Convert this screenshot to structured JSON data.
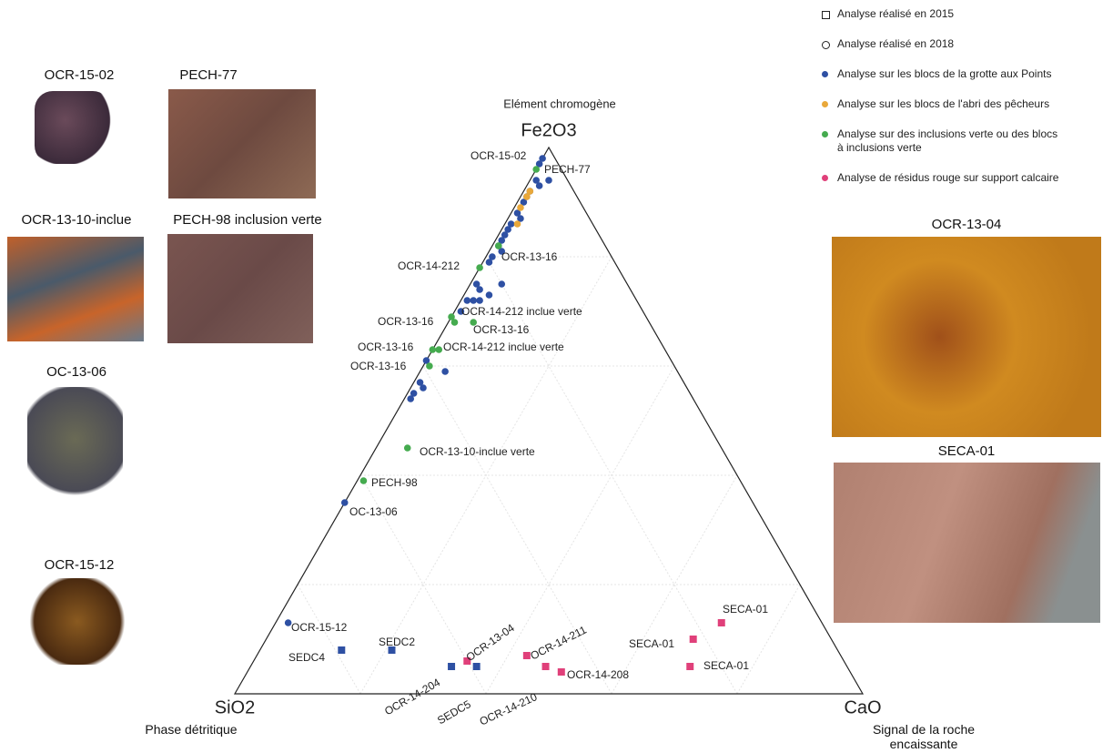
{
  "photos": [
    "OCR-15-02",
    "PECH-77",
    "OCR-13-10-inclue",
    "PECH-98 inclusion verte",
    "OC-13-06",
    "OCR-15-12",
    "OCR-13-04",
    "SECA-01"
  ],
  "chart_data": {
    "type": "ternary",
    "vertices": [
      {
        "name": "Fe2O3",
        "description": "Elément chromogène"
      },
      {
        "name": "SiO2",
        "description": "Phase détritique"
      },
      {
        "name": "CaO",
        "description": "Signal de la roche encaissante"
      }
    ],
    "lim": [
      0,
      100
    ],
    "ticks": [
      20,
      40,
      60,
      80
    ],
    "grid": true,
    "marker_legend": [
      {
        "marker": "square",
        "label": "Analyse réalisé en 2015"
      },
      {
        "marker": "circle",
        "label": "Analyse réalisé en 2018"
      }
    ],
    "series": [
      {
        "name": "Analyse sur les blocs de la grotte aux Points",
        "color": "#2e50a3",
        "fe": [
          98,
          97,
          94,
          94,
          93,
          92,
          91,
          90,
          88,
          87,
          86,
          85,
          84,
          83,
          82,
          81,
          80,
          79,
          75,
          75,
          74,
          72,
          72,
          72,
          73,
          70,
          59,
          61,
          57,
          56,
          55,
          54,
          35,
          13,
          8,
          8,
          5,
          5
        ],
        "si": [
          2,
          3,
          3,
          5,
          5,
          7,
          8,
          9,
          11,
          11,
          13,
          14,
          15,
          16,
          17,
          17,
          19,
          20,
          20,
          24,
          24,
          26,
          27,
          25,
          23,
          29,
          37,
          39,
          42,
          42,
          44,
          45,
          65,
          85,
          79,
          71,
          63,
          59
        ],
        "ca": [
          0,
          0,
          3,
          1,
          2,
          1,
          1,
          1,
          1,
          2,
          1,
          1,
          1,
          1,
          1,
          2,
          1,
          1,
          5,
          1,
          2,
          2,
          1,
          3,
          4,
          1,
          4,
          0,
          1,
          2,
          1,
          1,
          0,
          2,
          13,
          21,
          32,
          36
        ],
        "markers": [
          "circle",
          "circle",
          "circle",
          "circle",
          "circle",
          "circle",
          "circle",
          "circle",
          "circle",
          "circle",
          "circle",
          "circle",
          "circle",
          "circle",
          "circle",
          "circle",
          "circle",
          "circle",
          "circle",
          "circle",
          "circle",
          "circle",
          "circle",
          "circle",
          "circle",
          "circle",
          "circle",
          "circle",
          "circle",
          "circle",
          "circle",
          "circle",
          "circle",
          "circle",
          "square",
          "square",
          "square",
          "square"
        ]
      },
      {
        "name": "Analyse sur les blocs de l'abri des pêcheurs",
        "color": "#e9a83a",
        "fe": [
          92,
          91,
          89,
          86
        ],
        "si": [
          7,
          8,
          10,
          12
        ],
        "ca": [
          1,
          1,
          1,
          2
        ],
        "markers": [
          "circle",
          "circle",
          "circle",
          "circle"
        ]
      },
      {
        "name": "Analyse sur des inclusions verte ou des blocs à inclusions verte",
        "color": "#45ab4f",
        "fe": [
          96,
          82,
          78,
          69,
          68,
          68,
          63,
          63,
          60,
          45,
          39
        ],
        "si": [
          4,
          17,
          22,
          31,
          31,
          28,
          36,
          37,
          39,
          50,
          60
        ],
        "ca": [
          0,
          1,
          0,
          0,
          1,
          4,
          1,
          0,
          1,
          5,
          1
        ],
        "markers": [
          "circle",
          "circle",
          "circle",
          "circle",
          "circle",
          "circle",
          "circle",
          "circle",
          "circle",
          "circle",
          "circle"
        ]
      },
      {
        "name": "Analyse de résidus rouge sur support calcaire",
        "color": "#e0407a",
        "fe": [
          13,
          10,
          5,
          7,
          6,
          5,
          4
        ],
        "si": [
          16,
          22,
          25,
          50,
          60,
          48,
          46
        ],
        "ca": [
          71,
          68,
          70,
          43,
          34,
          47,
          50
        ],
        "markers": [
          "square",
          "square",
          "square",
          "square",
          "square",
          "square",
          "square"
        ]
      }
    ],
    "annotations": [
      "OCR-15-02",
      "PECH-77",
      "OCR-13-16",
      "OCR-14-212",
      "OCR-14-212 inclue verte",
      "OCR-13-16",
      "OCR-13-16",
      "OCR-13-16",
      "OCR-14-212 inclue verte",
      "OCR-13-16",
      "OCR-13-10-inclue verte",
      "PECH-98",
      "OC-13-06",
      "OCR-15-12",
      "SEDC4",
      "SEDC2",
      "SECA-01",
      "SECA-01",
      "SECA-01",
      "OCR-13-04",
      "OCR-14-211",
      "OCR-14-204",
      "SEDC5",
      "OCR-14-210",
      "OCR-14-208"
    ]
  }
}
